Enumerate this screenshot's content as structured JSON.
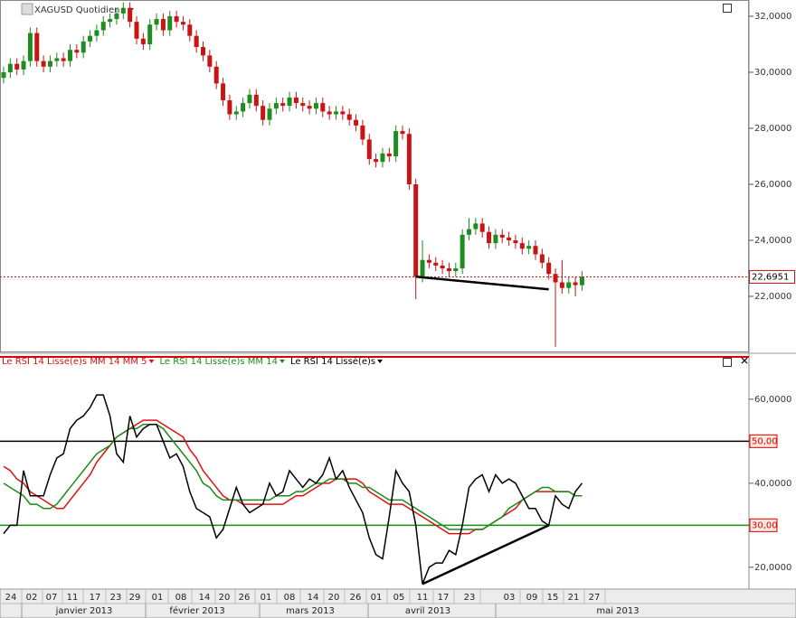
{
  "chart_data": [
    {
      "type": "candlestick",
      "title": "XAGUSD Quotidien",
      "up_color": "#1e8c1e",
      "down_color": "#c81414",
      "open": [
        29.8,
        30.0,
        30.3,
        30.1,
        30.4,
        31.4,
        30.4,
        30.2,
        30.4,
        30.5,
        30.4,
        30.8,
        30.7,
        31.1,
        31.3,
        31.5,
        31.8,
        31.9,
        32.1,
        32.3,
        31.8,
        31.2,
        31.0,
        31.7,
        31.9,
        31.5,
        32.0,
        31.8,
        31.7,
        31.3,
        30.9,
        30.6,
        30.2,
        29.6,
        29.0,
        28.5,
        28.6,
        28.9,
        29.2,
        28.8,
        28.3,
        28.7,
        28.9,
        28.8,
        29.1,
        28.9,
        28.8,
        28.7,
        28.9,
        28.6,
        28.5,
        28.6,
        28.5,
        28.3,
        28.1,
        27.6,
        26.9,
        26.8,
        27.1,
        27.0,
        27.9,
        27.8,
        26.0,
        22.7,
        23.3,
        23.2,
        23.1,
        23.0,
        22.9,
        23.0,
        24.2,
        24.4,
        24.6,
        24.3,
        23.9,
        24.2,
        24.1,
        24.0,
        23.9,
        23.7,
        23.8,
        23.5,
        23.2,
        22.8,
        22.5,
        22.3,
        22.5,
        22.4
      ],
      "high": [
        30.2,
        30.5,
        30.5,
        30.6,
        31.6,
        31.6,
        30.6,
        30.6,
        30.7,
        30.7,
        31.0,
        31.0,
        31.3,
        31.5,
        31.7,
        32.0,
        32.1,
        32.3,
        32.5,
        32.5,
        32.0,
        31.4,
        31.9,
        32.1,
        32.1,
        32.2,
        32.2,
        32.0,
        31.9,
        31.5,
        31.1,
        30.8,
        30.4,
        29.8,
        29.2,
        28.8,
        29.1,
        29.4,
        29.4,
        29.0,
        28.9,
        29.1,
        29.1,
        29.3,
        29.3,
        29.1,
        29.0,
        29.1,
        29.1,
        28.8,
        28.8,
        28.8,
        28.7,
        28.5,
        28.3,
        27.8,
        27.1,
        27.3,
        27.3,
        28.1,
        28.1,
        28.0,
        26.2,
        24.0,
        23.5,
        23.4,
        23.3,
        23.2,
        23.2,
        24.4,
        24.8,
        24.8,
        24.8,
        24.5,
        24.4,
        24.4,
        24.3,
        24.2,
        24.1,
        24.0,
        24.0,
        23.7,
        23.4,
        23.0,
        23.3,
        22.7,
        22.7,
        22.9
      ],
      "low": [
        29.6,
        29.8,
        29.9,
        29.9,
        30.2,
        30.2,
        30.0,
        30.0,
        30.2,
        30.2,
        30.2,
        30.5,
        30.5,
        30.9,
        31.1,
        31.3,
        31.6,
        31.7,
        31.9,
        31.6,
        31.0,
        30.8,
        30.8,
        31.5,
        31.3,
        31.3,
        31.6,
        31.5,
        31.1,
        30.7,
        30.4,
        30.0,
        29.4,
        28.8,
        28.3,
        28.3,
        28.4,
        28.7,
        28.6,
        28.1,
        28.1,
        28.5,
        28.6,
        28.6,
        28.7,
        28.6,
        28.5,
        28.5,
        28.4,
        28.3,
        28.3,
        28.3,
        28.1,
        27.9,
        27.4,
        26.7,
        26.6,
        26.6,
        26.8,
        26.8,
        27.6,
        25.8,
        21.9,
        22.5,
        23.0,
        22.9,
        22.8,
        22.7,
        22.7,
        22.8,
        24.0,
        24.2,
        24.1,
        23.7,
        23.7,
        23.9,
        23.8,
        23.7,
        23.5,
        23.5,
        23.3,
        23.0,
        22.6,
        20.2,
        22.1,
        22.1,
        22.0,
        22.2
      ],
      "close": [
        30.0,
        30.3,
        30.1,
        30.4,
        31.4,
        30.4,
        30.2,
        30.4,
        30.5,
        30.4,
        30.8,
        30.7,
        31.1,
        31.3,
        31.5,
        31.8,
        31.9,
        32.1,
        32.3,
        31.8,
        31.2,
        31.0,
        31.7,
        31.9,
        31.5,
        32.0,
        31.8,
        31.7,
        31.3,
        30.9,
        30.6,
        30.2,
        29.6,
        29.0,
        28.5,
        28.6,
        28.9,
        29.2,
        28.8,
        28.3,
        28.7,
        28.9,
        28.8,
        29.1,
        28.9,
        28.8,
        28.7,
        28.9,
        28.6,
        28.5,
        28.6,
        28.5,
        28.3,
        28.1,
        27.6,
        26.9,
        26.8,
        27.1,
        27.0,
        27.9,
        27.8,
        26.0,
        22.7,
        23.3,
        23.2,
        23.1,
        23.0,
        22.9,
        23.0,
        24.2,
        24.4,
        24.6,
        24.3,
        23.9,
        24.2,
        24.1,
        24.0,
        23.9,
        23.7,
        23.8,
        23.5,
        23.2,
        22.8,
        22.5,
        22.3,
        22.5,
        22.4,
        22.7
      ],
      "ylim": [
        20,
        32.58
      ],
      "yticks": [
        {
          "value": 22,
          "label": "22,0000"
        },
        {
          "value": 24,
          "label": "24,0000"
        },
        {
          "value": 26,
          "label": "26,0000"
        },
        {
          "value": 28,
          "label": "28,0000"
        },
        {
          "value": 30,
          "label": "30,0000"
        },
        {
          "value": 32,
          "label": "32,0000"
        }
      ],
      "last": {
        "value": 22.6951,
        "label": "22,6951",
        "color": "#c81414"
      },
      "trendline": {
        "x": [
          62,
          82
        ],
        "values": [
          22.7,
          22.25
        ]
      }
    },
    {
      "type": "line",
      "series": [
        {
          "name": "Le RSI 14 Lissé(e)s MM 14 MM 5",
          "color": "#e01010",
          "values": [
            44,
            43,
            41,
            40,
            38,
            37,
            36,
            35,
            34,
            34,
            36,
            38,
            40,
            42,
            45,
            47,
            49,
            51,
            52,
            53,
            54,
            55,
            55,
            55,
            54,
            53,
            52,
            51,
            48,
            46,
            43,
            41,
            39,
            37,
            36,
            36,
            35,
            35,
            35,
            35,
            35,
            35,
            35,
            36,
            37,
            37,
            38,
            39,
            40,
            40,
            41,
            41,
            41,
            41,
            40,
            38,
            37,
            36,
            35,
            35,
            35,
            34,
            33,
            32,
            31,
            30,
            29,
            28,
            28,
            28,
            28,
            29,
            29,
            30,
            31,
            32,
            33,
            34,
            36,
            37,
            38,
            38,
            38,
            38,
            38,
            38,
            37,
            37
          ]
        },
        {
          "name": "Le RSI 14 Lissé(e)s MM 14",
          "color": "#188c18",
          "values": [
            40,
            39,
            38,
            37,
            35,
            35,
            34,
            34,
            35,
            37,
            39,
            41,
            43,
            45,
            47,
            48,
            49,
            51,
            52,
            53,
            53,
            54,
            54,
            54,
            53,
            51,
            49,
            47,
            45,
            43,
            40,
            39,
            37,
            36,
            36,
            36,
            36,
            36,
            36,
            36,
            36,
            37,
            37,
            37,
            38,
            38,
            39,
            40,
            40,
            41,
            41,
            41,
            40,
            40,
            39,
            39,
            38,
            37,
            36,
            36,
            36,
            35,
            34,
            33,
            32,
            31,
            30,
            29,
            29,
            29,
            29,
            29,
            29,
            30,
            31,
            32,
            34,
            35,
            36,
            37,
            38,
            39,
            39,
            38,
            38,
            38,
            37,
            37
          ]
        },
        {
          "name": "Le RSI 14 Lissé(e)s",
          "color": "#000000",
          "values": [
            28,
            30,
            30,
            43,
            37,
            37,
            37,
            42,
            46,
            47,
            53,
            55,
            56,
            58,
            61,
            61,
            56,
            47,
            45,
            56,
            51,
            53,
            54,
            54,
            50,
            46,
            47,
            44,
            38,
            34,
            33,
            32,
            27,
            29,
            34,
            39,
            35,
            33,
            34,
            35,
            40,
            37,
            38,
            43,
            41,
            39,
            41,
            40,
            42,
            46,
            41,
            43,
            39,
            36,
            33,
            27,
            23,
            22,
            32,
            43,
            40,
            38,
            30,
            16,
            20,
            21,
            21,
            24,
            23,
            30,
            39,
            41,
            42,
            38,
            42,
            40,
            41,
            40,
            37,
            34,
            34,
            31,
            30,
            37,
            35,
            34,
            38,
            40
          ]
        }
      ],
      "ylim": [
        14.8,
        70.5
      ],
      "yticks": [
        {
          "value": 20,
          "label": "20,0000"
        },
        {
          "value": 40,
          "label": "40,0000"
        },
        {
          "value": 60,
          "label": "60,0000"
        }
      ],
      "levels": [
        {
          "value": 50,
          "label": "50,00",
          "color": "#000000"
        },
        {
          "value": 30,
          "label": "30,00",
          "color": "#188c18"
        }
      ],
      "trendline": {
        "x": [
          63,
          82
        ],
        "values": [
          16,
          30
        ]
      },
      "days": [
        "24",
        "02",
        "07",
        "11",
        "17",
        "23",
        "29",
        "01",
        "08",
        "14",
        "20",
        "26",
        "01",
        "08",
        "14",
        "20",
        "26",
        "01",
        "05",
        "11",
        "17",
        "23",
        "03",
        "09",
        "15",
        "21",
        "27"
      ],
      "months": [
        "janvier 2013",
        "février 2013",
        "mars 2013",
        "avril 2013",
        "mai 2013"
      ]
    }
  ]
}
